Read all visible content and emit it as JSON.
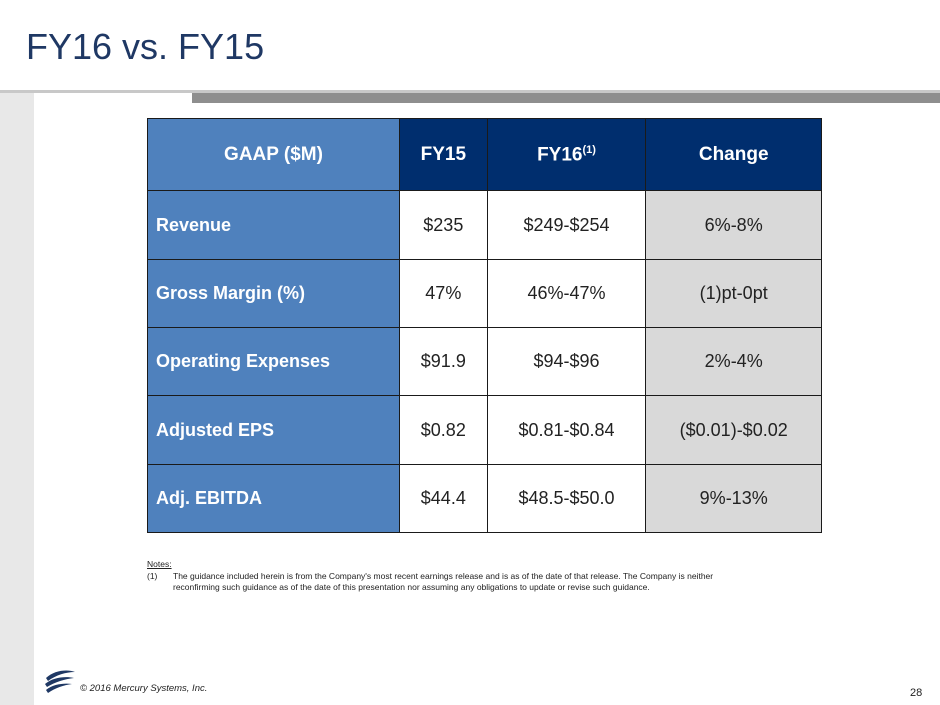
{
  "title": "FY16 vs. FY15",
  "table": {
    "headers": {
      "metric": "GAAP ($M)",
      "fy15": "FY15",
      "fy16": "FY16",
      "fy16_sup": "(1)",
      "change": "Change"
    },
    "rows": [
      {
        "metric": "Revenue",
        "fy15": "$235",
        "fy16": "$249-$254",
        "change": "6%-8%"
      },
      {
        "metric": "Gross Margin (%)",
        "fy15": "47%",
        "fy16": "46%-47%",
        "change": "(1)pt-0pt"
      },
      {
        "metric": "Operating Expenses",
        "fy15": "$91.9",
        "fy16": "$94-$96",
        "change": "2%-4%"
      },
      {
        "metric": "Adjusted EPS",
        "fy15": "$0.82",
        "fy16": "$0.81-$0.84",
        "change": "($0.01)-$0.02"
      },
      {
        "metric": "Adj. EBITDA",
        "fy15": "$44.4",
        "fy16": "$48.5-$50.0",
        "change": "9%-13%"
      }
    ]
  },
  "notes": {
    "header": "Notes:",
    "items": [
      {
        "num": "(1)",
        "text": "The guidance included herein is from the Company's most recent earnings release and is as of the date of that release. The Company is  neither reconfirming such guidance as of the date of this presentation nor assuming any obligations to update or revise such guidance."
      }
    ]
  },
  "footer": {
    "copyright": "© 2016 Mercury Systems, Inc.",
    "page_number": "28",
    "logo_icon": "mercury-logo-icon"
  },
  "colors": {
    "title": "#1f3864",
    "metric_column": "#4f81bd",
    "header_dark": "#002e6e",
    "change_column": "#d9d9d9"
  }
}
